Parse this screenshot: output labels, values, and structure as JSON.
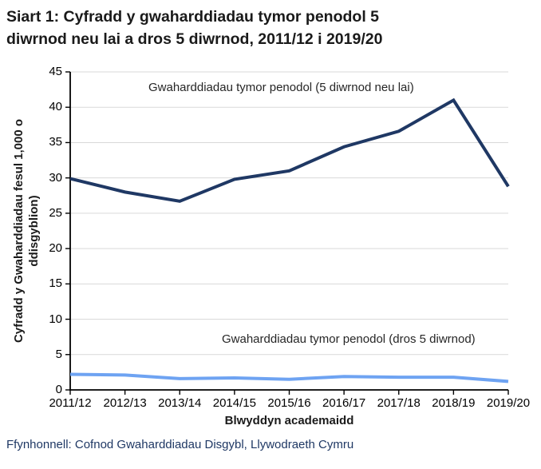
{
  "title": {
    "line1": "Siart 1: Cyfradd y gwaharddiadau tymor penodol 5",
    "line2": "diwrnod neu lai a dros 5 diwrnod, 2011/12 i 2019/20"
  },
  "source_note": "Ffynhonnell: Cofnod Gwaharddiadau Disgybl, Llywodraeth Cymru",
  "chart_data": {
    "type": "line",
    "categories": [
      "2011/12",
      "2012/13",
      "2013/14",
      "2014/15",
      "2015/16",
      "2016/17",
      "2017/18",
      "2018/19",
      "2019/20"
    ],
    "series": [
      {
        "name": "Gwaharddiadau tymor penodol (5 diwrnod neu lai)",
        "values": [
          29.9,
          28.0,
          26.7,
          29.8,
          31.0,
          34.4,
          36.6,
          41.0,
          28.8
        ],
        "color": "#1f3864"
      },
      {
        "name": "Gwaharddiadau tymor penodol (dros 5 diwrnod)",
        "values": [
          2.2,
          2.1,
          1.6,
          1.7,
          1.5,
          1.9,
          1.8,
          1.8,
          1.2
        ],
        "color": "#6ea3f2"
      }
    ],
    "xlabel": "Blwyddyn academaidd",
    "ylabel_line1": "Cyfradd y Gwaharddiadau fesul 1,000 o",
    "ylabel_line2": "ddisgyblion)",
    "ylim": [
      0,
      45
    ],
    "ytick_step": 5,
    "grid": true,
    "gridline_color": "#d9d9d9",
    "axis_color": "#000000",
    "legend_position": "inline-annotations"
  }
}
